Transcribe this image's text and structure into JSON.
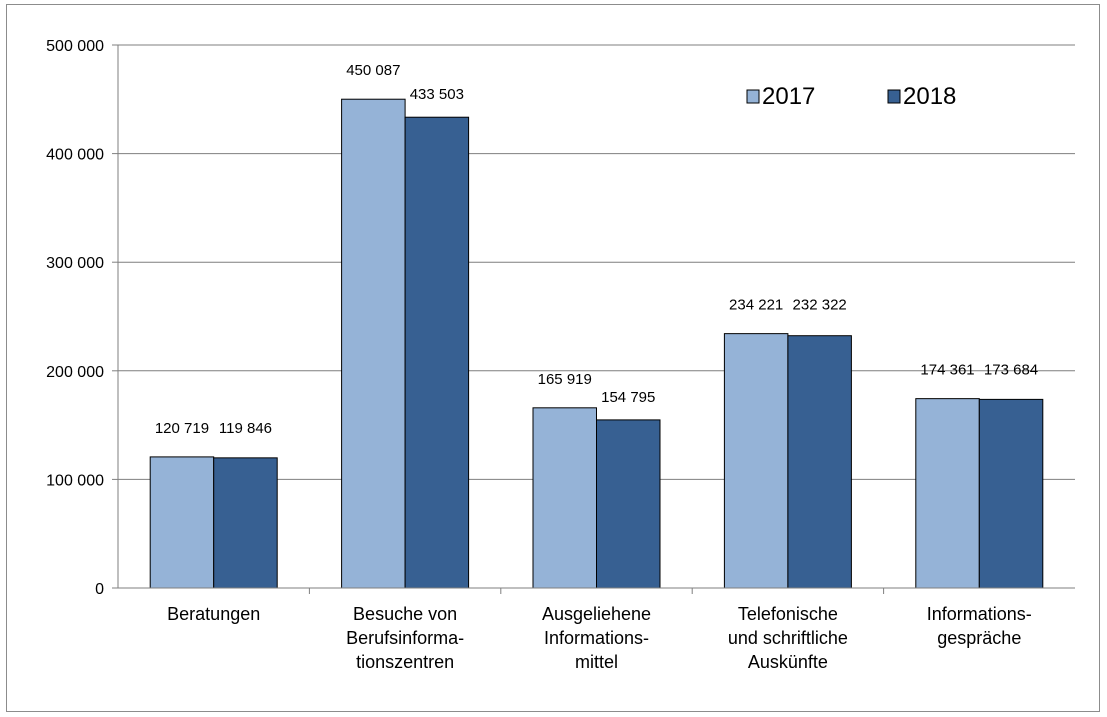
{
  "chart_data": {
    "type": "bar",
    "title": "",
    "xlabel": "",
    "ylabel": "",
    "ylim": [
      0,
      500000
    ],
    "yticks": [
      0,
      100000,
      200000,
      300000,
      400000,
      500000
    ],
    "ytick_labels": [
      "0",
      "100 000",
      "200 000",
      "300 000",
      "400 000",
      "500 000"
    ],
    "grid": true,
    "legend_position": "top-right",
    "categories": [
      [
        "Beratungen"
      ],
      [
        "Besuche von",
        "Berufsinforma-",
        "tionszentren"
      ],
      [
        "Ausgeliehene",
        "Informations-",
        "mittel"
      ],
      [
        "Telefonische",
        "und schriftliche",
        "Auskünfte"
      ],
      [
        "Informations-",
        "gespräche"
      ]
    ],
    "series": [
      {
        "name": "2017",
        "color": "#95B3D7",
        "values": [
          120719,
          450087,
          165919,
          234221,
          174361
        ],
        "labels": [
          "120 719",
          "450 087",
          "165 919",
          "234 221",
          "174 361"
        ]
      },
      {
        "name": "2018",
        "color": "#376092",
        "values": [
          119846,
          433503,
          154795,
          232322,
          173684
        ],
        "labels": [
          "119 846",
          "433 503",
          "154 795",
          "232 322",
          "173 684"
        ]
      }
    ]
  }
}
